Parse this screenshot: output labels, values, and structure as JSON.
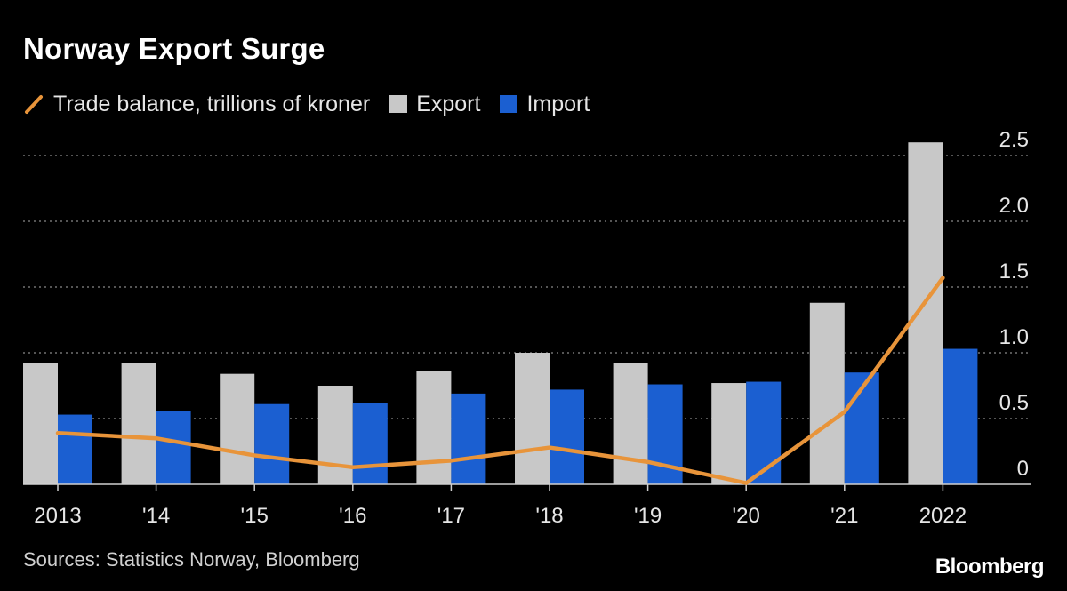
{
  "title": "Norway Export Surge",
  "legend": {
    "line_label": "Trade balance, trillions of kroner",
    "export_label": "Export",
    "import_label": "Import"
  },
  "colors": {
    "background": "#000000",
    "export": "#c8c8c8",
    "import": "#1b5fd1",
    "balance": "#e8943a",
    "grid": "#888888",
    "text": "#e6e6e6"
  },
  "chart_data": {
    "type": "bar",
    "categories": [
      "2013",
      "'14",
      "'15",
      "'16",
      "'17",
      "'18",
      "'19",
      "'20",
      "'21",
      "2022"
    ],
    "series": [
      {
        "name": "Export",
        "kind": "bar",
        "values": [
          0.92,
          0.92,
          0.84,
          0.75,
          0.86,
          1.0,
          0.92,
          0.77,
          1.38,
          2.6
        ]
      },
      {
        "name": "Import",
        "kind": "bar",
        "values": [
          0.53,
          0.56,
          0.61,
          0.62,
          0.69,
          0.72,
          0.76,
          0.78,
          0.85,
          1.03
        ]
      },
      {
        "name": "Trade balance, trillions of kroner",
        "kind": "line",
        "values": [
          0.39,
          0.35,
          0.22,
          0.13,
          0.18,
          0.28,
          0.17,
          0.01,
          0.55,
          1.57
        ]
      }
    ],
    "yticks": [
      0,
      0.5,
      1.0,
      1.5,
      2.0,
      2.5
    ],
    "ytick_labels": [
      "0",
      "0.5",
      "1.0",
      "1.5",
      "2.0",
      "2.5"
    ],
    "ylim": [
      0,
      2.6
    ],
    "y_axis_side": "right",
    "grid": true,
    "xlabel": "",
    "ylabel": ""
  },
  "footer": {
    "source": "Sources: Statistics Norway, Bloomberg",
    "brand": "Bloomberg"
  }
}
